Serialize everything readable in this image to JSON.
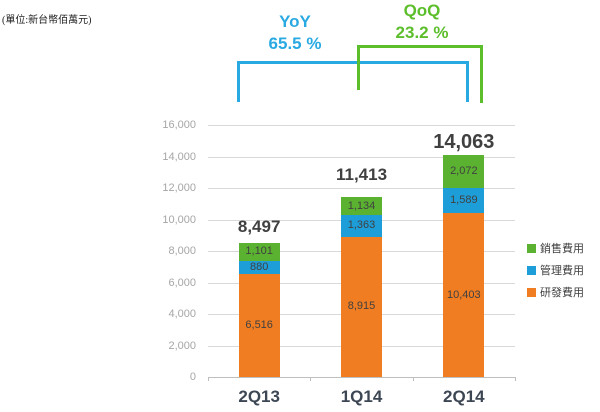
{
  "unit_label": "(單位:新台幣佰萬元)",
  "annotations": {
    "yoy": {
      "label": "YoY",
      "value": "65.5 %",
      "color": "#29a9e1"
    },
    "qoq": {
      "label": "QoQ",
      "value": "23.2 %",
      "color": "#5cbe2b"
    }
  },
  "legend": {
    "items": [
      {
        "label": "銷售費用",
        "color": "#5bb231"
      },
      {
        "label": "管理費用",
        "color": "#1e9ed9"
      },
      {
        "label": "研發費用",
        "color": "#f07d22"
      }
    ]
  },
  "chart_data": {
    "type": "bar",
    "stacked": true,
    "title": "",
    "categories": [
      "2Q13",
      "1Q14",
      "2Q14"
    ],
    "series": [
      {
        "id": "rnd-expense",
        "name": "研發費用",
        "color": "#f07d22",
        "values": [
          6516,
          8915,
          10403
        ]
      },
      {
        "id": "admin-expense",
        "name": "管理費用",
        "color": "#1e9ed9",
        "values": [
          880,
          1363,
          1589
        ]
      },
      {
        "id": "sales-expense",
        "name": "銷售費用",
        "color": "#5bb231",
        "values": [
          1101,
          1134,
          2072
        ]
      }
    ],
    "totals": [
      "8,497",
      "11,413",
      "14,063"
    ],
    "ylim": [
      0,
      16000
    ],
    "ytick_step": 2000,
    "grid": true,
    "legend_position": "right",
    "growth_annotations": [
      {
        "label": "YoY",
        "value": "65.5 %",
        "from": "2Q13",
        "to": "2Q14"
      },
      {
        "label": "QoQ",
        "value": "23.2 %",
        "from": "1Q14",
        "to": "2Q14"
      }
    ]
  }
}
